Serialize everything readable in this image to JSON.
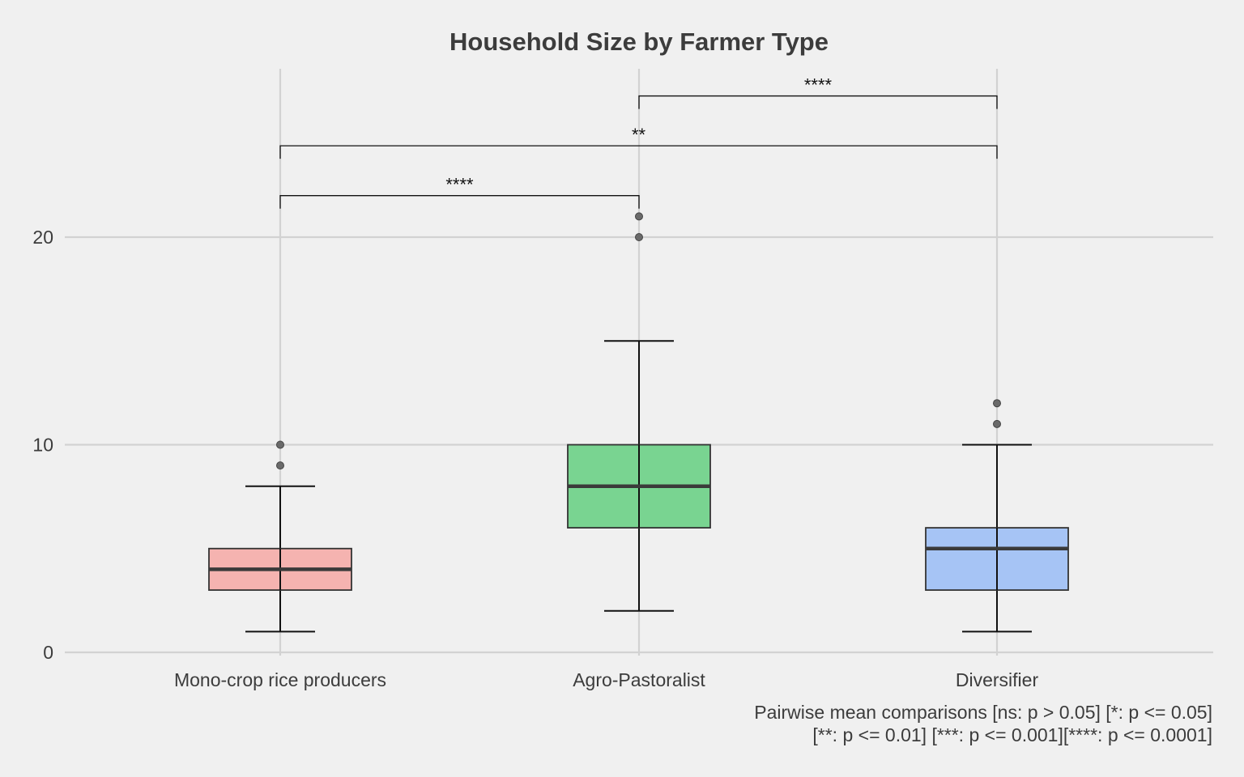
{
  "chart_data": {
    "type": "boxplot",
    "title": "Household Size by Farmer Type",
    "xlabel": "",
    "ylabel": "",
    "ylim": [
      0,
      27
    ],
    "yticks": [
      0,
      10,
      20
    ],
    "yticks_labels": [
      "0",
      "10",
      "20"
    ],
    "grid": true,
    "categories": [
      "Mono-crop rice producers",
      "Agro-Pastoralist",
      "Diversifier"
    ],
    "boxes": [
      {
        "category": "Mono-crop rice producers",
        "color": "#f5b3b0",
        "min": 1,
        "q1": 3,
        "median": 4,
        "q3": 5,
        "max": 8,
        "outliers": [
          9,
          10
        ]
      },
      {
        "category": "Agro-Pastoralist",
        "color": "#79d491",
        "min": 2,
        "q1": 6,
        "median": 8,
        "q3": 10,
        "max": 15,
        "outliers": [
          20,
          21
        ]
      },
      {
        "category": "Diversifier",
        "color": "#a6c4f5",
        "min": 1,
        "q1": 3,
        "median": 5,
        "q3": 6,
        "max": 10,
        "outliers": [
          11,
          12
        ]
      }
    ],
    "comparisons": [
      {
        "group1": "Mono-crop rice producers",
        "group2": "Agro-Pastoralist",
        "label": "****",
        "y": 22
      },
      {
        "group1": "Mono-crop rice producers",
        "group2": "Diversifier",
        "label": "**",
        "y": 24.4
      },
      {
        "group1": "Agro-Pastoralist",
        "group2": "Diversifier",
        "label": "****",
        "y": 26.8
      }
    ],
    "caption_lines": [
      "Pairwise mean comparisons [ns: p > 0.05] [*: p <= 0.05]",
      "[**: p <= 0.01] [***: p <= 0.001][****: p <= 0.0001]"
    ]
  }
}
